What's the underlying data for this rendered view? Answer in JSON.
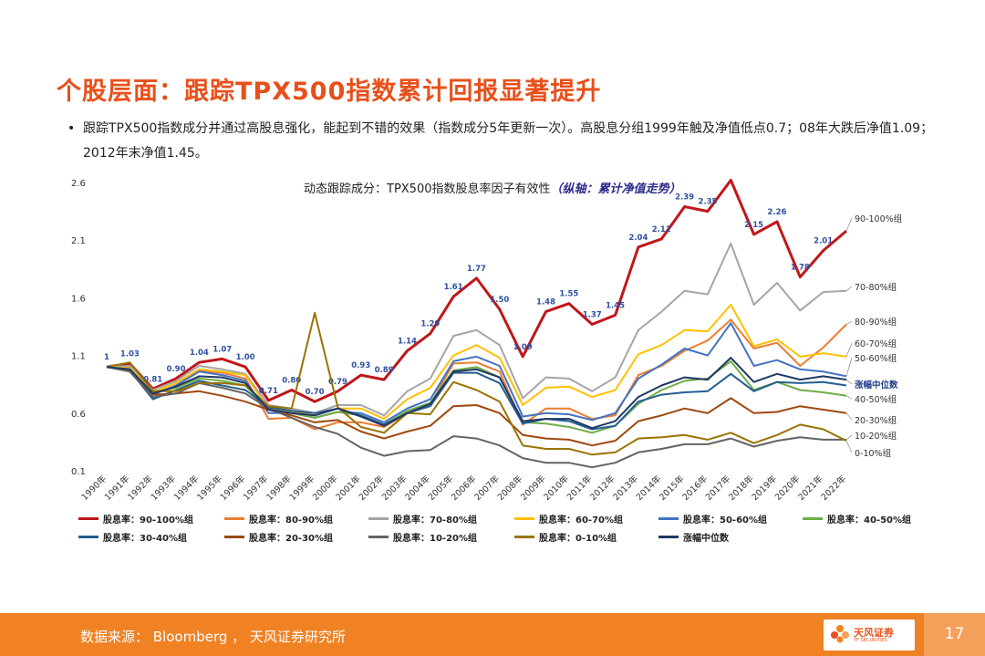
{
  "slide": {
    "title": "个股层面：跟踪TPX500指数累计回报显著提升",
    "bullet_dot": "•",
    "bullet": "跟踪TPX500指数成分并通过高股息强化，能起到不错的效果（指数成分5年更新一次）。高股息分组1999年触及净值低点0.7；08年大跌后净值1.09；2012年末净值1.45。"
  },
  "footer": {
    "source": "数据来源： Bloomberg ， 天风证券研究所",
    "logo_text": "天风证券",
    "logo_sub": "TF SECURITIES",
    "page_number": "17"
  },
  "colors": {
    "title": "#e8501b",
    "footer": "#f08224"
  },
  "chart_data": {
    "type": "line",
    "title": "动态跟踪成分：TPX500指数股息率因子有效性",
    "title_emphasis": "（纵轴：累计净值走势）",
    "ylim": [
      0.1,
      2.6
    ],
    "yticks": [
      "0.1",
      "0.6",
      "1.1",
      "1.6",
      "2.1",
      "2.6"
    ],
    "categories": [
      "1990年",
      "1991年",
      "1992年",
      "1993年",
      "1994年",
      "1995年",
      "1996年",
      "1997年",
      "1998年",
      "1999年",
      "2000年",
      "2001年",
      "2002年",
      "2003年",
      "2004年",
      "2005年",
      "2006年",
      "2007年",
      "2008年",
      "2009年",
      "2010年",
      "2011年",
      "2012年",
      "2013年",
      "2014年",
      "2015年",
      "2016年",
      "2017年",
      "2018年",
      "2019年",
      "2020年",
      "2021年",
      "2022年"
    ],
    "series": [
      {
        "name": "股息率：90-100%组",
        "end_label": "90-100%组",
        "color": "#c0161a",
        "width": 3,
        "show_labels": true,
        "values": [
          1.0,
          1.03,
          0.81,
          0.9,
          1.04,
          1.07,
          1.0,
          0.71,
          0.8,
          0.7,
          0.79,
          0.93,
          0.89,
          1.14,
          1.29,
          1.61,
          1.77,
          1.5,
          1.09,
          1.48,
          1.55,
          1.37,
          1.45,
          2.04,
          2.11,
          2.39,
          2.35,
          2.62,
          2.15,
          2.26,
          1.78,
          2.01,
          2.18
        ],
        "labels": [
          "1",
          "1.03",
          "0.81",
          "0.90",
          "1.04",
          "1.07",
          "1.00",
          "0.71",
          "0.80",
          "0.70",
          "0.79",
          "0.93",
          "0.89",
          "1.14",
          "1.29",
          "1.61",
          "1.77",
          "1.50",
          "1.09",
          "1.48",
          "1.55",
          "1.37",
          "1.45",
          "2.04",
          "2.11",
          "2.39",
          "2.35",
          "",
          "2.15",
          "2.26",
          "1.78",
          "2.01",
          ""
        ]
      },
      {
        "name": "股息率：80-90%组",
        "end_label": "80-90%组",
        "color": "#ed7d31",
        "width": 2,
        "values": [
          1.0,
          1.0,
          0.78,
          0.86,
          0.97,
          0.95,
          0.9,
          0.55,
          0.56,
          0.46,
          0.52,
          0.52,
          0.48,
          0.6,
          0.68,
          1.03,
          1.04,
          0.96,
          0.5,
          0.64,
          0.64,
          0.55,
          0.58,
          0.93,
          1.01,
          1.14,
          1.23,
          1.41,
          1.16,
          1.21,
          1.01,
          1.17,
          1.37
        ]
      },
      {
        "name": "股息率：70-80%组",
        "end_label": "70-80%组",
        "color": "#a5a5a5",
        "width": 2,
        "values": [
          1.0,
          1.01,
          0.8,
          0.88,
          1.01,
          0.98,
          0.94,
          0.67,
          0.64,
          0.6,
          0.67,
          0.67,
          0.58,
          0.79,
          0.9,
          1.27,
          1.32,
          1.19,
          0.73,
          0.91,
          0.9,
          0.79,
          0.91,
          1.32,
          1.48,
          1.66,
          1.63,
          2.07,
          1.54,
          1.73,
          1.49,
          1.65,
          1.66
        ]
      },
      {
        "name": "股息率：60-70%组",
        "end_label": "60-70%组",
        "color": "#ffc000",
        "width": 2,
        "values": [
          1.0,
          0.99,
          0.78,
          0.86,
          0.98,
          0.96,
          0.93,
          0.63,
          0.62,
          0.58,
          0.64,
          0.64,
          0.55,
          0.72,
          0.82,
          1.1,
          1.19,
          1.08,
          0.67,
          0.82,
          0.83,
          0.74,
          0.8,
          1.11,
          1.19,
          1.32,
          1.31,
          1.54,
          1.18,
          1.24,
          1.09,
          1.12,
          1.09
        ]
      },
      {
        "name": "股息率：50-60%组",
        "end_label": "50-60%组",
        "color": "#4472c4",
        "width": 2,
        "values": [
          1.0,
          0.98,
          0.76,
          0.84,
          0.96,
          0.93,
          0.88,
          0.6,
          0.6,
          0.56,
          0.61,
          0.6,
          0.52,
          0.64,
          0.72,
          1.05,
          1.09,
          1.01,
          0.57,
          0.6,
          0.59,
          0.54,
          0.6,
          0.9,
          1.02,
          1.16,
          1.1,
          1.38,
          1.01,
          1.06,
          0.98,
          0.96,
          0.92
        ]
      },
      {
        "name": "股息率：40-50%组",
        "end_label": "40-50%组",
        "color": "#70ad47",
        "width": 2,
        "values": [
          1.0,
          0.98,
          0.78,
          0.82,
          0.9,
          0.88,
          0.84,
          0.63,
          0.6,
          0.56,
          0.61,
          0.58,
          0.5,
          0.62,
          0.69,
          0.97,
          1.0,
          0.91,
          0.52,
          0.51,
          0.48,
          0.43,
          0.49,
          0.68,
          0.8,
          0.88,
          0.9,
          1.05,
          0.8,
          0.87,
          0.8,
          0.78,
          0.75
        ]
      },
      {
        "name": "股息率：30-40%组",
        "end_label": "",
        "color": "#255e91",
        "width": 2,
        "values": [
          1.0,
          0.97,
          0.72,
          0.8,
          0.88,
          0.84,
          0.8,
          0.65,
          0.62,
          0.6,
          0.64,
          0.58,
          0.5,
          0.6,
          0.66,
          0.95,
          0.95,
          0.86,
          0.51,
          0.55,
          0.53,
          0.46,
          0.49,
          0.7,
          0.76,
          0.78,
          0.79,
          0.94,
          0.79,
          0.87,
          0.86,
          0.87,
          0.84
        ]
      },
      {
        "name": "股息率：20-30%组",
        "end_label": "20-30%组",
        "color": "#9e480e",
        "width": 2,
        "values": [
          1.0,
          0.97,
          0.76,
          0.77,
          0.79,
          0.75,
          0.7,
          0.63,
          0.58,
          0.52,
          0.54,
          0.44,
          0.38,
          0.44,
          0.49,
          0.66,
          0.67,
          0.6,
          0.41,
          0.38,
          0.37,
          0.32,
          0.36,
          0.53,
          0.58,
          0.64,
          0.6,
          0.73,
          0.6,
          0.61,
          0.66,
          0.63,
          0.6
        ]
      },
      {
        "name": "股息率：10-20%组",
        "end_label": "10-20%组",
        "color": "#636363",
        "width": 2,
        "values": [
          1.0,
          0.96,
          0.74,
          0.77,
          0.86,
          0.82,
          0.77,
          0.64,
          0.56,
          0.48,
          0.42,
          0.3,
          0.23,
          0.27,
          0.28,
          0.4,
          0.38,
          0.32,
          0.21,
          0.17,
          0.17,
          0.13,
          0.17,
          0.26,
          0.29,
          0.33,
          0.33,
          0.38,
          0.31,
          0.36,
          0.39,
          0.37,
          0.37
        ]
      },
      {
        "name": "股息率：0-10%组",
        "end_label": "0-10%组",
        "color": "#997300",
        "width": 2,
        "values": [
          1.0,
          1.04,
          0.79,
          0.79,
          0.86,
          0.86,
          0.84,
          0.66,
          0.64,
          1.47,
          0.65,
          0.48,
          0.43,
          0.6,
          0.59,
          0.87,
          0.8,
          0.7,
          0.32,
          0.29,
          0.29,
          0.24,
          0.26,
          0.38,
          0.39,
          0.41,
          0.37,
          0.43,
          0.34,
          0.41,
          0.5,
          0.46,
          0.36
        ]
      },
      {
        "name": "涨幅中位数",
        "end_label": "涨幅中位数",
        "color": "#203864",
        "width": 2,
        "values": [
          1.0,
          0.98,
          0.77,
          0.83,
          0.92,
          0.91,
          0.86,
          0.63,
          0.6,
          0.58,
          0.64,
          0.57,
          0.49,
          0.6,
          0.68,
          0.96,
          0.98,
          0.91,
          0.53,
          0.55,
          0.55,
          0.47,
          0.53,
          0.74,
          0.84,
          0.91,
          0.89,
          1.08,
          0.87,
          0.94,
          0.89,
          0.92,
          0.89
        ]
      }
    ]
  }
}
